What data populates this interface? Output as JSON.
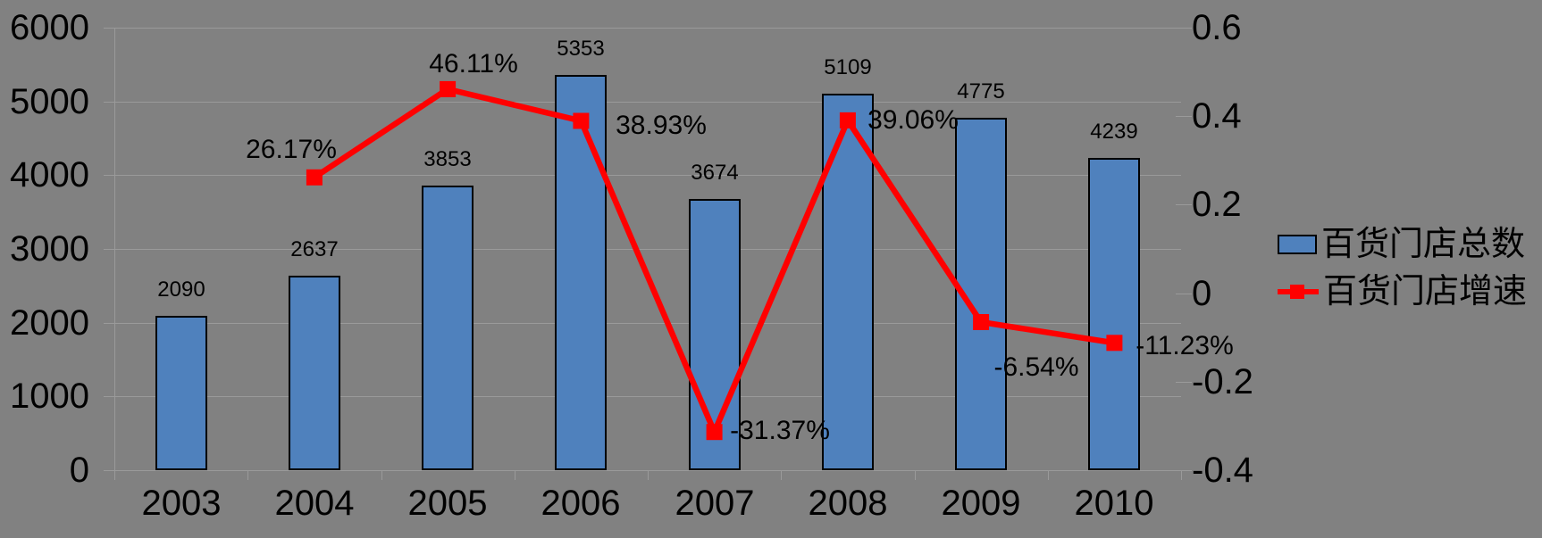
{
  "chart_data": {
    "type": "combo-bar-line",
    "title": "",
    "categories": [
      "2003",
      "2004",
      "2005",
      "2006",
      "2007",
      "2008",
      "2009",
      "2010"
    ],
    "series": [
      {
        "name": "百货门店总数",
        "type": "bar",
        "axis": "left",
        "values": [
          2090,
          2637,
          3853,
          5353,
          3674,
          5109,
          4775,
          4239
        ],
        "value_labels": [
          "2090",
          "2637",
          "3853",
          "5353",
          "3674",
          "5109",
          "4775",
          "4239"
        ]
      },
      {
        "name": "百货门店增速",
        "type": "line",
        "axis": "right",
        "values_percent": [
          null,
          26.17,
          46.11,
          38.93,
          -31.37,
          39.06,
          -6.54,
          -11.23
        ],
        "value_labels": [
          null,
          "26.17%",
          "46.11%",
          "38.93%",
          "-31.37%",
          "39.06%",
          "-6.54%",
          "-11.23%"
        ],
        "marker": "square"
      }
    ],
    "left_axis": {
      "min": 0,
      "max": 6000,
      "ticks": [
        6000,
        5000,
        4000,
        3000,
        2000,
        1000,
        0
      ],
      "tick_labels": [
        "6000",
        "5000",
        "4000",
        "3000",
        "2000",
        "1000",
        "0"
      ]
    },
    "right_axis": {
      "min": -0.4,
      "max": 0.6,
      "ticks": [
        0.6,
        0.4,
        0.2,
        0,
        -0.2,
        -0.4
      ],
      "tick_labels": [
        "0.6",
        "0.4",
        "0.2",
        "0",
        "-0.2",
        "-0.4"
      ]
    },
    "grid": true,
    "legend_position": "right"
  },
  "legend": {
    "items": [
      {
        "label": "百货门店总数",
        "marker": "bar-swatch"
      },
      {
        "label": "百货门店增速",
        "marker": "line-square"
      }
    ]
  },
  "colors": {
    "background": "#818181",
    "gridline": "#9a9a9a",
    "bar_fill": "#4F81BD",
    "bar_border": "#000000",
    "line": "#FF0000",
    "marker": "#FF0000",
    "text": "#000000"
  }
}
